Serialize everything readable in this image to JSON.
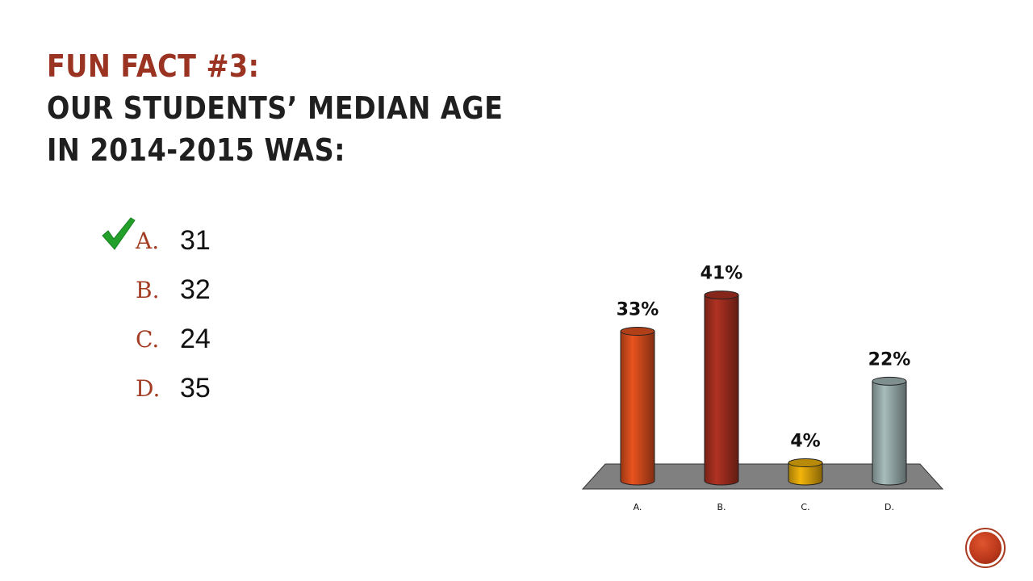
{
  "title": {
    "line1": "Fun Fact #3:",
    "line2": "Our Students’ Median Age",
    "line3": "in 2014-2015 was:"
  },
  "answers": [
    {
      "letter": "A.",
      "value": "31",
      "correct": true
    },
    {
      "letter": "B.",
      "value": "32",
      "correct": false
    },
    {
      "letter": "C.",
      "value": "24",
      "correct": false
    },
    {
      "letter": "D.",
      "value": "35",
      "correct": false
    }
  ],
  "icons": {
    "check": "checkmark-icon",
    "nav": "nav-circle-icon"
  },
  "colors": {
    "title_accent": "#9a3322",
    "answer_letter": "#a23d24",
    "check": "#22a02a"
  },
  "chart_data": {
    "type": "bar",
    "categories": [
      "A.",
      "B.",
      "C.",
      "D."
    ],
    "values": [
      33,
      41,
      4,
      22
    ],
    "data_labels": [
      "33%",
      "41%",
      "4%",
      "22%"
    ],
    "colors": [
      "#d04a1c",
      "#9e2d1e",
      "#d9a20a",
      "#95a8a8"
    ],
    "title": "",
    "xlabel": "",
    "ylabel": "",
    "ylim": [
      0,
      45
    ],
    "grid": false,
    "legend": "none",
    "style": "3d-cylinder"
  }
}
